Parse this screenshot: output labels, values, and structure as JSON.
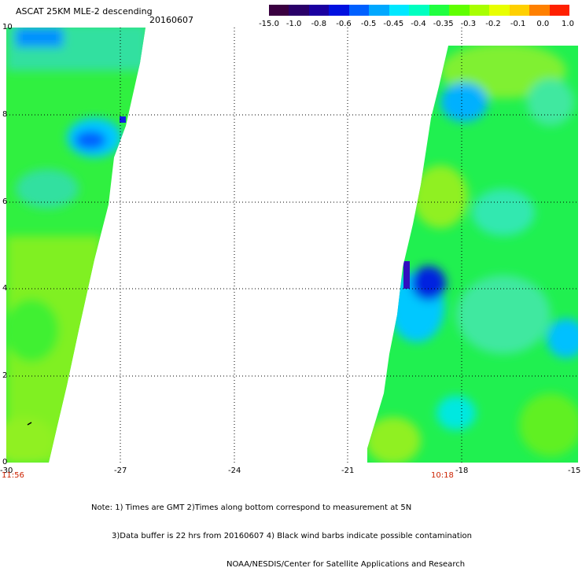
{
  "header": {
    "title": "ASCAT 25KM MLE-2 descending",
    "date": "20160607"
  },
  "colorbar": {
    "colors": [
      "#3a0040",
      "#2a0068",
      "#1a00a0",
      "#0010e0",
      "#0060ff",
      "#00a8ff",
      "#00e8ff",
      "#00ffc0",
      "#20ff40",
      "#60ff00",
      "#a8ff00",
      "#e8ff00",
      "#ffd000",
      "#ff8000",
      "#ff2000"
    ],
    "labels": [
      "-15.0",
      "-1.0",
      "-0.8",
      "-0.6",
      "-0.5",
      "-0.45",
      "-0.4",
      "-0.35",
      "-0.3",
      "-0.2",
      "-0.1",
      "0.0",
      "1.0"
    ]
  },
  "axes": {
    "x_ticks": [
      "-30",
      "-27",
      "-24",
      "-21",
      "-18",
      "-15"
    ],
    "y_ticks": [
      "10",
      "8",
      "6",
      "4",
      "2",
      "0"
    ]
  },
  "swath_times": {
    "left": "11:56",
    "right": "10:18"
  },
  "footer": {
    "line1": "Note: 1) Times are GMT 2)Times along bottom correspond to measurement at 5N",
    "line2": "3)Data buffer is 22 hrs from 20160607 4) Black wind barbs indicate possible contamination",
    "line3": "NOAA/NESDIS/Center for Satellite Applications and Research"
  },
  "colors": {
    "background": "#ffffff",
    "grid": "#000000",
    "time_label": "#cc2200"
  }
}
